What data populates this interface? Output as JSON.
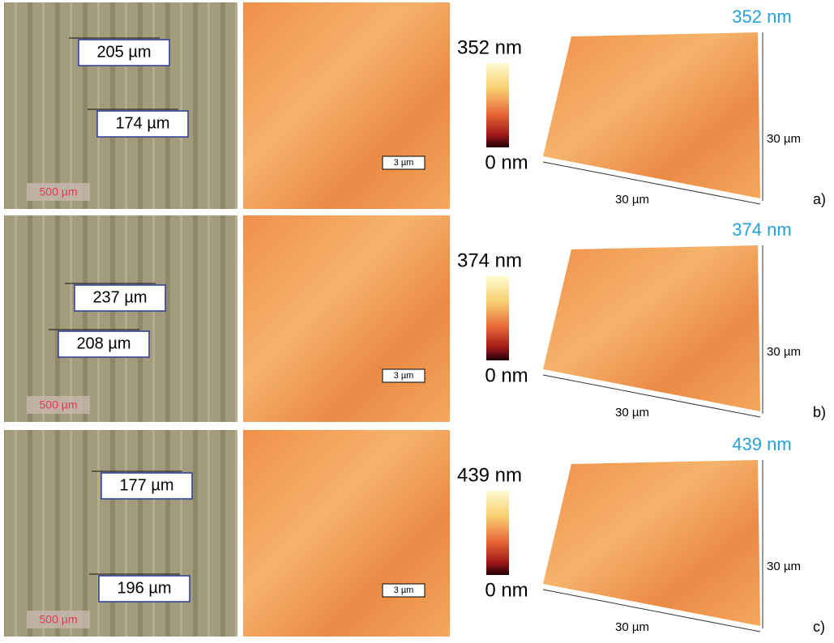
{
  "rows": [
    {
      "micrograph": {
        "measurements": [
          "205 µm",
          "174 µm"
        ],
        "scale_bar": "500 µm"
      },
      "afm_2d": {
        "scale_bar": "3 µm"
      },
      "colorbar": {
        "max": "352 nm",
        "min": "0 nm"
      },
      "afm_3d": {
        "height": "352 nm",
        "y_size": "30 µm",
        "x_size": "30 µm"
      },
      "label": "a)"
    },
    {
      "micrograph": {
        "measurements": [
          "237 µm",
          "208 µm"
        ],
        "scale_bar": "500 µm"
      },
      "afm_2d": {
        "scale_bar": "3 µm"
      },
      "colorbar": {
        "max": "374 nm",
        "min": "0 nm"
      },
      "afm_3d": {
        "height": "374 nm",
        "y_size": "30 µm",
        "x_size": "30 µm"
      },
      "label": "b)"
    },
    {
      "micrograph": {
        "measurements": [
          "177 µm",
          "196 µm"
        ],
        "scale_bar": "500 µm"
      },
      "afm_2d": {
        "scale_bar": "3 µm"
      },
      "colorbar": {
        "max": "439 nm",
        "min": "0 nm"
      },
      "afm_3d": {
        "height": "439 nm",
        "y_size": "30 µm",
        "x_size": "30 µm"
      },
      "label": "c)"
    }
  ]
}
